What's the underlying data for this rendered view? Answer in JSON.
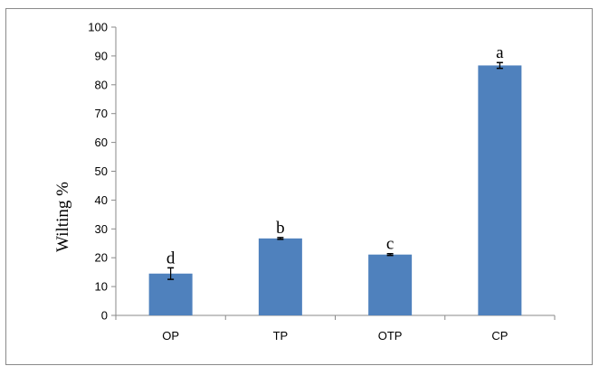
{
  "chart_data": {
    "type": "bar",
    "title": "",
    "xlabel": "",
    "ylabel": "Wilting %",
    "ylim": [
      0,
      100
    ],
    "yticks": [
      0,
      10,
      20,
      30,
      40,
      50,
      60,
      70,
      80,
      90,
      100
    ],
    "categories": [
      "OP",
      "TP",
      "OTP",
      "CP"
    ],
    "values": [
      14.5,
      26.7,
      21.1,
      86.7
    ],
    "errors": [
      2.0,
      0.3,
      0.3,
      1.0
    ],
    "significance_letters": [
      "d",
      "b",
      "c",
      "a"
    ],
    "grid": false,
    "legend": "none",
    "bar_color": "#4f81bd"
  }
}
